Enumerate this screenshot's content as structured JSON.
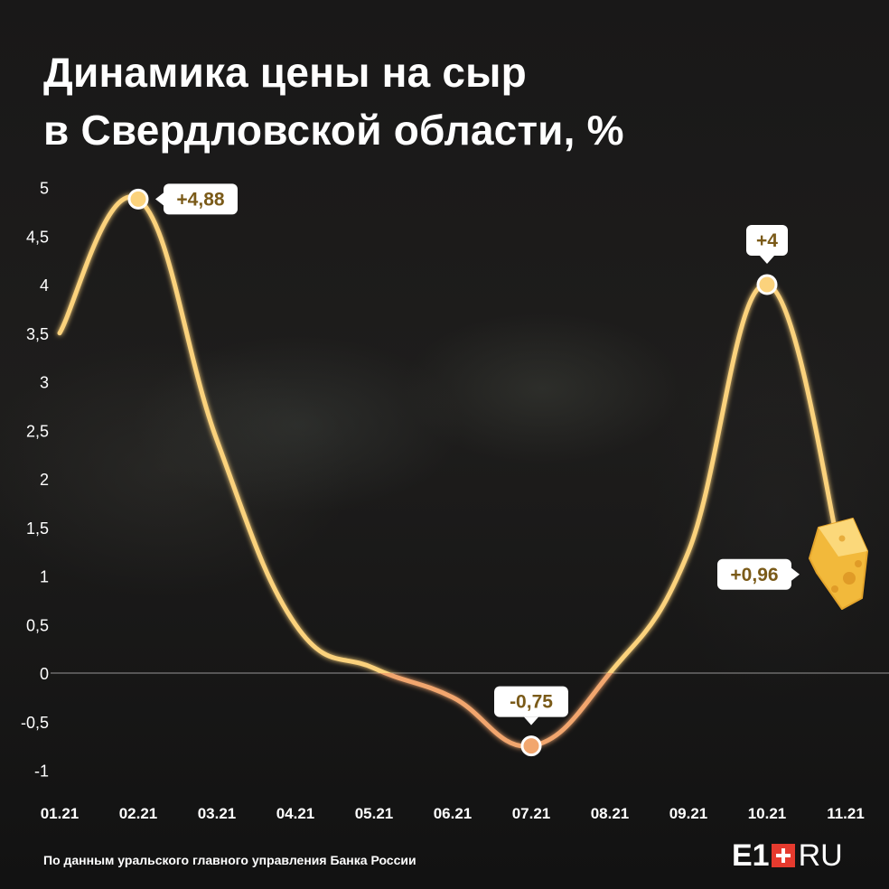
{
  "title": {
    "line1": "Динамика цены на сыр",
    "line2": "в Свердловской области, %"
  },
  "chart_data": {
    "type": "line",
    "categories": [
      "01.21",
      "02.21",
      "03.21",
      "04.21",
      "05.21",
      "06.21",
      "07.21",
      "08.21",
      "09.21",
      "10.21",
      "11.21"
    ],
    "values": [
      3.5,
      4.88,
      2.4,
      0.5,
      0.05,
      -0.25,
      -0.75,
      0.0,
      1.25,
      4.0,
      0.96
    ],
    "y_ticks": [
      "-1",
      "-0,5",
      "0",
      "0,5",
      "1",
      "1,5",
      "2",
      "2,5",
      "3",
      "3,5",
      "4",
      "4,5",
      "5"
    ],
    "ylim": [
      -1,
      5
    ],
    "grid": false,
    "zero_line": true,
    "annotations": [
      {
        "category": "02.21",
        "value": 4.88,
        "label": "+4,88"
      },
      {
        "category": "07.21",
        "value": -0.75,
        "label": "-0,75"
      },
      {
        "category": "10.21",
        "value": 4.0,
        "label": "+4"
      },
      {
        "category": "11.21",
        "value": 0.96,
        "label": "+0,96"
      }
    ],
    "colors": {
      "line_positive": "#fbd27c",
      "line_negative": "#f2a66e",
      "label_text": "#7a5a18",
      "label_bg": "#ffffff",
      "axis_text": "#ffffff"
    }
  },
  "footer": {
    "source": "По данным уральского главного управления Банка России",
    "logo_left": "E1",
    "logo_right": "RU",
    "logo_accent": "#e53a2e"
  },
  "icons": {
    "cheese": "cheese-icon"
  }
}
